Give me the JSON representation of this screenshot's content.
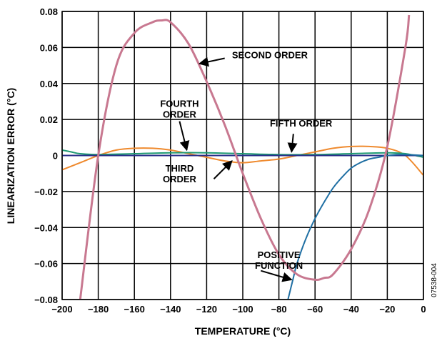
{
  "chart_data": {
    "type": "line",
    "title": "",
    "xlabel": "TEMPERATURE (°C)",
    "ylabel": "LINEARIZATION ERROR (°C)",
    "xlim": [
      -200,
      0
    ],
    "ylim": [
      -0.08,
      0.08
    ],
    "x_ticks": [
      "−200",
      "−180",
      "−160",
      "−140",
      "−120",
      "−100",
      "−80",
      "−60",
      "−40",
      "−20",
      "0"
    ],
    "y_ticks": [
      "0.08",
      "0.06",
      "0.04",
      "0.02",
      "0",
      "−0.02",
      "−0.04",
      "−0.06",
      "−0.08"
    ],
    "grid": true,
    "figure_id": "07538-004",
    "series": [
      {
        "name": "SECOND ORDER",
        "color": "#c87890",
        "x": [
          -190,
          -180,
          -170,
          -160,
          -150,
          -145,
          -140,
          -130,
          -120,
          -110,
          -100,
          -90,
          -80,
          -70,
          -60,
          -55,
          -50,
          -40,
          -30,
          -20,
          -10,
          -8
        ],
        "y": [
          -0.08,
          0.0,
          0.05,
          0.068,
          0.074,
          0.075,
          0.074,
          0.062,
          0.041,
          0.017,
          -0.01,
          -0.035,
          -0.055,
          -0.066,
          -0.069,
          -0.068,
          -0.066,
          -0.052,
          -0.03,
          0.005,
          0.06,
          0.078
        ]
      },
      {
        "name": "THIRD ORDER",
        "color": "#ef8a2e",
        "x": [
          -200,
          -190,
          -180,
          -170,
          -160,
          -150,
          -140,
          -130,
          -120,
          -110,
          -100,
          -90,
          -80,
          -70,
          -60,
          -50,
          -40,
          -30,
          -20,
          -10,
          0
        ],
        "y": [
          -0.008,
          -0.004,
          0.0,
          0.003,
          0.004,
          0.004,
          0.003,
          0.001,
          -0.001,
          -0.003,
          -0.004,
          -0.003,
          -0.002,
          0.0,
          0.002,
          0.004,
          0.005,
          0.005,
          0.004,
          0.0,
          -0.011
        ]
      },
      {
        "name": "FOURTH ORDER",
        "color": "#1f9a73",
        "x": [
          -200,
          -195,
          -190,
          -180,
          -160,
          -140,
          -120,
          -100,
          -80,
          -60,
          -40,
          -20,
          -10,
          0
        ],
        "y": [
          0.003,
          0.002,
          0.001,
          0.0005,
          0.001,
          0.0015,
          0.0015,
          0.001,
          0.0005,
          0.0005,
          0.001,
          0.0015,
          0.001,
          -0.001
        ]
      },
      {
        "name": "FIFTH ORDER",
        "color": "#2a2f8a",
        "x": [
          -200,
          -160,
          -120,
          -80,
          -40,
          0
        ],
        "y": [
          0.0,
          0.0,
          0.0,
          0.0,
          0.0,
          0.0
        ]
      },
      {
        "name": "POSITIVE FUNCTION",
        "color": "#1f6fa3",
        "x": [
          -75,
          -72,
          -70,
          -65,
          -60,
          -55,
          -50,
          -45,
          -40,
          -35,
          -30,
          -25,
          -20,
          -15,
          -10,
          0
        ],
        "y": [
          -0.08,
          -0.068,
          -0.06,
          -0.046,
          -0.035,
          -0.026,
          -0.018,
          -0.012,
          -0.007,
          -0.004,
          -0.002,
          -0.001,
          0.0,
          0.0005,
          0.0005,
          0.0
        ]
      }
    ],
    "annotations": [
      {
        "id": "second",
        "lines": [
          "SECOND ORDER"
        ]
      },
      {
        "id": "fourth",
        "lines": [
          "FOURTH",
          "ORDER"
        ]
      },
      {
        "id": "fifth",
        "lines": [
          "FIFTH ORDER"
        ]
      },
      {
        "id": "third",
        "lines": [
          "THIRD",
          "ORDER"
        ]
      },
      {
        "id": "positive",
        "lines": [
          "POSITIVE",
          "FUNCTION"
        ]
      }
    ]
  }
}
